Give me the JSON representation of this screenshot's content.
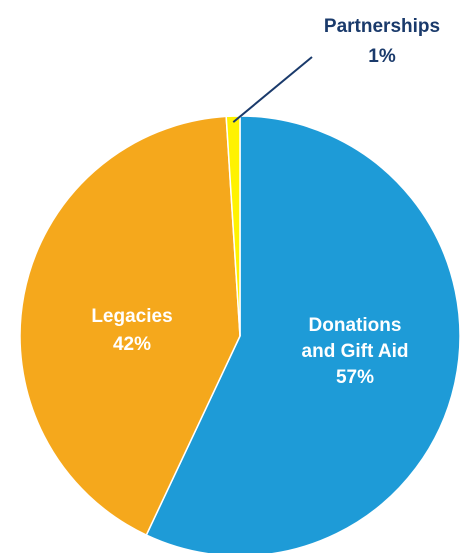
{
  "chart_data": {
    "type": "pie",
    "title": "",
    "slices": [
      {
        "name": "Donations and Gift Aid",
        "label_lines": [
          "Donations",
          "and Gift Aid",
          "57%"
        ],
        "value": 57,
        "color": "#1e9bd7",
        "label_color": "#ffffff"
      },
      {
        "name": "Legacies",
        "label_lines": [
          "Legacies",
          "42%"
        ],
        "value": 42,
        "color": "#f5a81c",
        "label_color": "#ffffff"
      },
      {
        "name": "Partnerships",
        "label_lines": [
          "Partnerships",
          "1%"
        ],
        "value": 1,
        "color": "#fff200",
        "label_color": "#1a3a6b"
      }
    ],
    "start_at": "12 o'clock",
    "direction": "clockwise",
    "legend": "none",
    "slice_separator_color": "#ffffff"
  }
}
